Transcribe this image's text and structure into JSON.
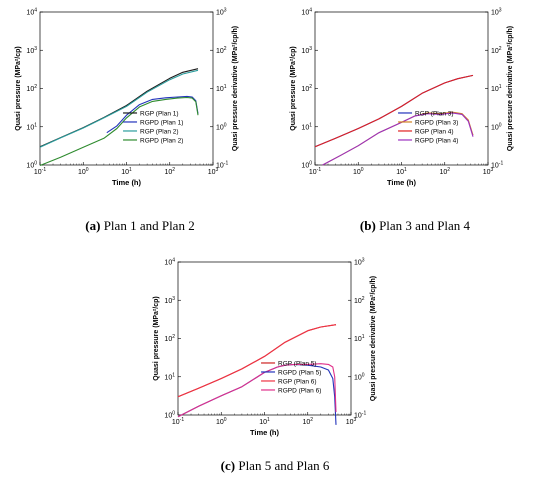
{
  "chart_data": [
    {
      "type": "line",
      "xscale": "log",
      "y1scale": "log",
      "y2scale": "log",
      "xlim": [
        0.1,
        1000
      ],
      "ylim": [
        1,
        10000
      ],
      "y2lim": [
        0.1,
        1000
      ],
      "xlabel": "Time (h)",
      "ylabel": "Quasi pressure (MPa²/cp)",
      "y2label": "Quasi pressure derivative (MPa²/cp/h)",
      "series": [
        {
          "name": "RGP (Plan 1)",
          "color": "#1a1a1a",
          "axis": "left",
          "x": [
            0.1,
            0.3,
            1,
            3,
            10,
            30,
            100,
            200,
            450
          ],
          "y": [
            3,
            5.2,
            9.5,
            17.5,
            36,
            85,
            185,
            265,
            330
          ]
        },
        {
          "name": "RGPD (Plan 1)",
          "color": "#2233bb",
          "axis": "left",
          "x": [
            3.5,
            6,
            10,
            20,
            40,
            80,
            150,
            250,
            330,
            400,
            450
          ],
          "y": [
            7,
            10.5,
            20,
            38,
            52,
            57,
            60,
            62,
            60,
            48,
            22
          ]
        },
        {
          "name": "RGP (Plan 2)",
          "color": "#2a9d9d",
          "axis": "left",
          "x": [
            0.1,
            0.3,
            1,
            3,
            10,
            30,
            100,
            200,
            450
          ],
          "y": [
            2.9,
            5.1,
            9.3,
            17,
            34,
            80,
            170,
            240,
            300
          ]
        },
        {
          "name": "RGPD (Plan 2)",
          "color": "#2e8b2e",
          "axis": "left",
          "x": [
            0.1,
            0.3,
            1,
            3,
            6,
            10,
            20,
            40,
            80,
            150,
            250,
            330,
            400,
            450
          ],
          "y": [
            0.97,
            1.6,
            2.9,
            5,
            9,
            17,
            33,
            46,
            52,
            56,
            58,
            56,
            45,
            20
          ]
        }
      ]
    },
    {
      "type": "line",
      "xscale": "log",
      "y1scale": "log",
      "y2scale": "log",
      "xlim": [
        0.1,
        1000
      ],
      "ylim": [
        1,
        10000
      ],
      "y2lim": [
        0.1,
        1000
      ],
      "xlabel": "Time (h)",
      "ylabel": "Quasi pressure (MPa²/cp)",
      "y2label": "Quasi pressure derivative (MPa²/cp/h)",
      "series": [
        {
          "name": "RGP (Plan 3)",
          "color": "#2233bb",
          "axis": "left",
          "x": [
            0.1,
            0.3,
            1,
            3,
            10,
            30,
            100,
            200,
            450
          ],
          "y": [
            3,
            5,
            9,
            16,
            34,
            75,
            140,
            180,
            220
          ]
        },
        {
          "name": "RGPD (Plan 3)",
          "color": "#d08020",
          "axis": "left",
          "x": [
            0.15,
            0.4,
            1,
            3,
            10,
            20,
            40,
            80,
            150,
            250,
            350,
            450
          ],
          "y": [
            1,
            1.8,
            3.2,
            7,
            13,
            19,
            23,
            22,
            24,
            22,
            15,
            6
          ]
        },
        {
          "name": "RGP (Plan 4)",
          "color": "#e02020",
          "axis": "left",
          "x": [
            0.1,
            0.3,
            1,
            3,
            10,
            30,
            100,
            200,
            450
          ],
          "y": [
            3,
            5,
            9,
            16,
            34,
            75,
            140,
            180,
            220
          ]
        },
        {
          "name": "RGPD (Plan 4)",
          "color": "#9b30c0",
          "axis": "left",
          "x": [
            0.15,
            0.4,
            1,
            3,
            10,
            20,
            40,
            80,
            150,
            250,
            350,
            450
          ],
          "y": [
            1,
            1.8,
            3.2,
            7,
            13,
            19,
            22,
            21,
            23,
            21,
            14,
            5.5
          ]
        }
      ]
    },
    {
      "type": "line",
      "xscale": "log",
      "y1scale": "log",
      "y2scale": "log",
      "xlim": [
        0.1,
        1000
      ],
      "ylim": [
        1,
        10000
      ],
      "y2lim": [
        0.1,
        1000
      ],
      "xlabel": "Time (h)",
      "ylabel": "Quasi pressure (MPa²/cp)",
      "y2label": "Quasi pressure derivative (MPa²/cp/h)",
      "series": [
        {
          "name": "RGP (Plan 5)",
          "color": "#cc2222",
          "axis": "left",
          "x": [
            0.1,
            0.3,
            1,
            3,
            10,
            30,
            100,
            200,
            450
          ],
          "y": [
            3,
            5,
            9,
            16,
            34,
            80,
            160,
            200,
            230
          ]
        },
        {
          "name": "RGPD (Plan 5)",
          "color": "#2233bb",
          "axis": "left",
          "x": [
            0.1,
            0.3,
            1,
            3,
            10,
            20,
            30,
            50,
            100,
            200,
            300,
            380,
            420,
            450
          ],
          "y": [
            0.9,
            1.7,
            3.2,
            5.5,
            13,
            18,
            20,
            21,
            20,
            18,
            15,
            9,
            3,
            0.55
          ]
        },
        {
          "name": "RGP (Plan 6)",
          "color": "#ee3344",
          "axis": "left",
          "x": [
            0.1,
            0.3,
            1,
            3,
            10,
            30,
            100,
            200,
            450
          ],
          "y": [
            3,
            5,
            9,
            16,
            34,
            80,
            160,
            200,
            230
          ]
        },
        {
          "name": "RGPD (Plan 6)",
          "color": "#e0308a",
          "axis": "left",
          "x": [
            0.1,
            0.3,
            1,
            3,
            10,
            20,
            30,
            50,
            100,
            200,
            300,
            380,
            420,
            450
          ],
          "y": [
            0.9,
            1.7,
            3.2,
            5.5,
            13,
            18,
            20,
            21,
            21,
            22,
            21,
            18,
            10,
            1.2
          ]
        }
      ]
    }
  ],
  "captions": [
    {
      "label": "(a)",
      "text": " Plan 1 and Plan 2"
    },
    {
      "label": "(b)",
      "text": " Plan 3 and Plan 4"
    },
    {
      "label": "(c)",
      "text": " Plan 5 and Plan 6"
    }
  ]
}
